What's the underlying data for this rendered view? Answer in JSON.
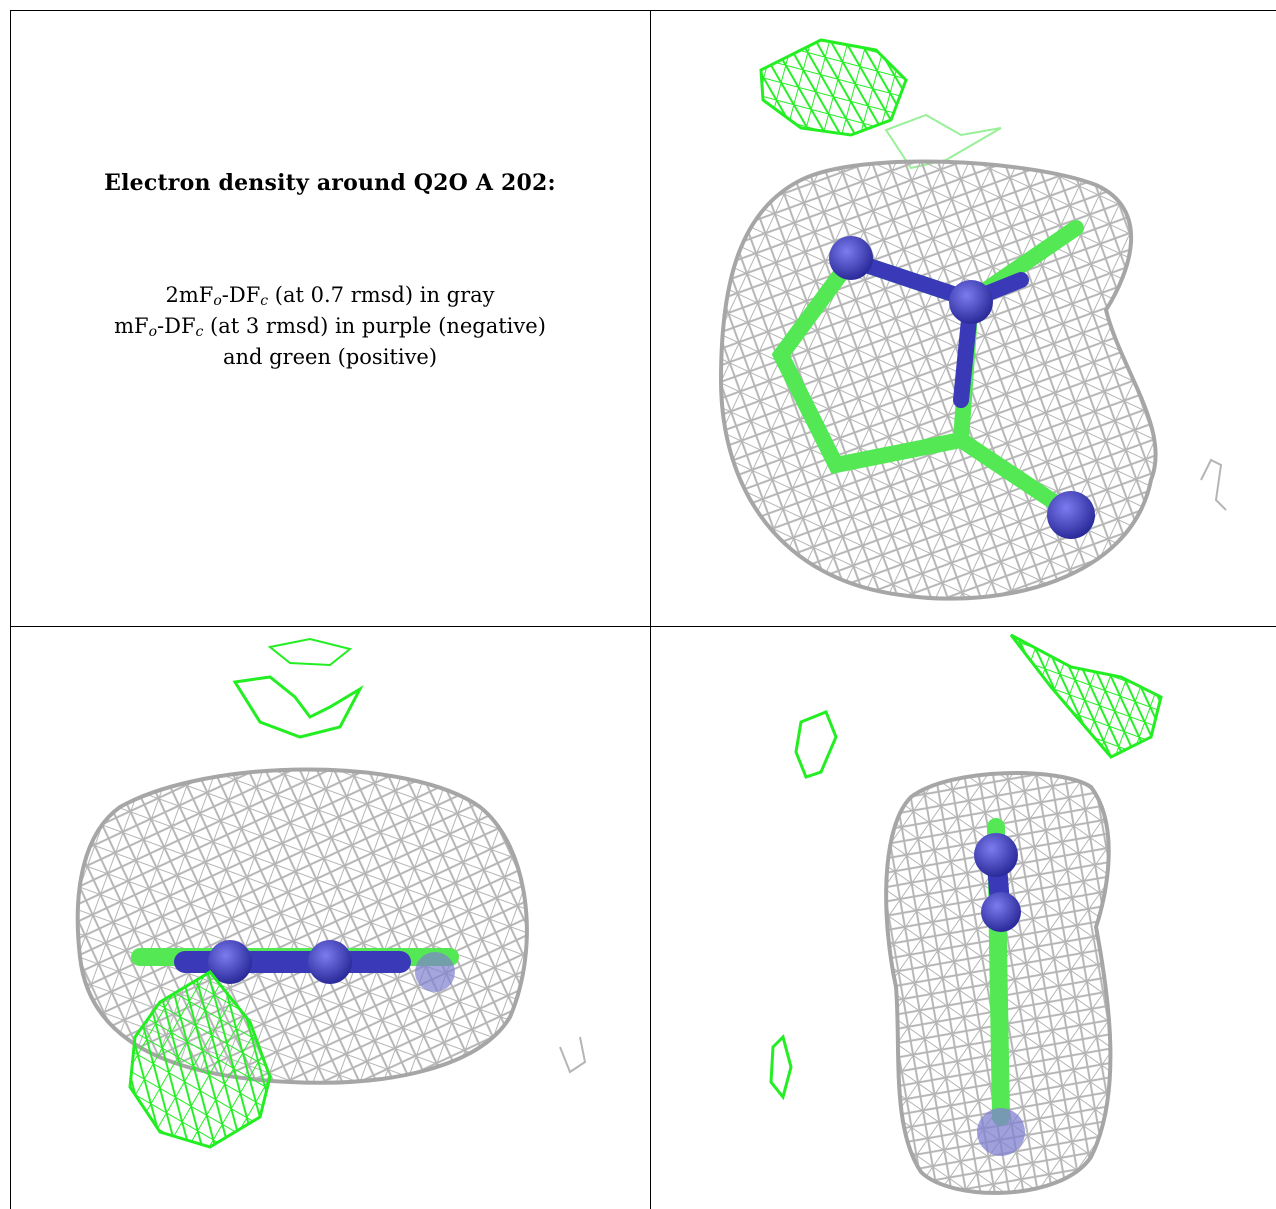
{
  "caption": {
    "title": "Electron density around Q2O A 202:",
    "line1": {
      "a": "2mF",
      "b": "o",
      "c": "-DF",
      "d": "c",
      "e": " (at 0.7 rmsd) in gray"
    },
    "line2": {
      "a": "mF",
      "b": "o",
      "c": "-DF",
      "d": "c",
      "e": " (at 3 rmsd) in purple (negative)"
    },
    "line3": "and green (positive)"
  },
  "colors": {
    "mesh_2fofc": "#b3b3b3",
    "mesh_dark": "#8c8c8c",
    "mesh_positive": "#22ee22",
    "atom_nitrogen": "#3a3ab8",
    "bond_carbon": "#55e855"
  },
  "panels": {
    "top_right": "view-1",
    "bottom_left": "view-2",
    "bottom_right": "view-3"
  }
}
